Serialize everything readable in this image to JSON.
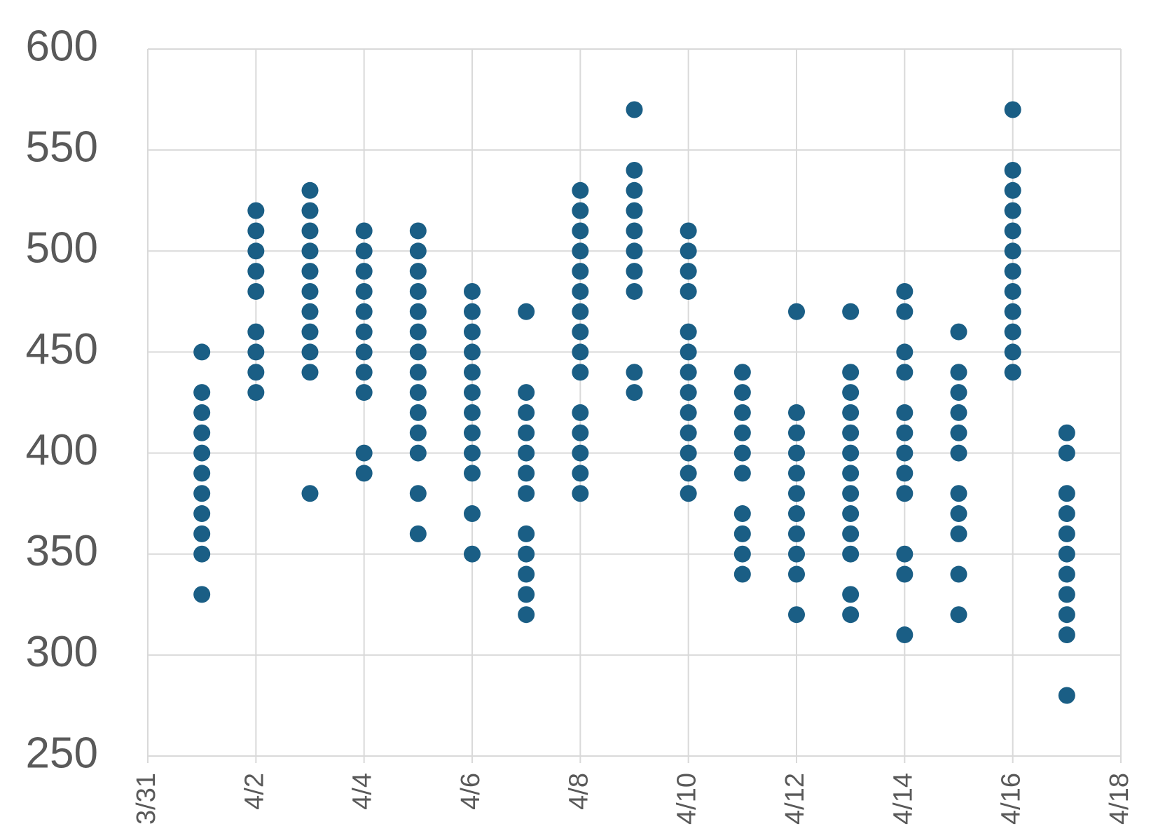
{
  "chart_data": {
    "type": "scatter",
    "series": [
      {
        "color": "#1a5e85",
        "x": [
          "4/1",
          "4/1",
          "4/1",
          "4/1",
          "4/1",
          "4/1",
          "4/1",
          "4/1",
          "4/1",
          "4/1",
          "4/1",
          "4/2",
          "4/2",
          "4/2",
          "4/2",
          "4/2",
          "4/2",
          "4/2",
          "4/2",
          "4/2",
          "4/3",
          "4/3",
          "4/3",
          "4/3",
          "4/3",
          "4/3",
          "4/3",
          "4/3",
          "4/3",
          "4/3",
          "4/3",
          "4/4",
          "4/4",
          "4/4",
          "4/4",
          "4/4",
          "4/4",
          "4/4",
          "4/4",
          "4/4",
          "4/4",
          "4/4",
          "4/5",
          "4/5",
          "4/5",
          "4/5",
          "4/5",
          "4/5",
          "4/5",
          "4/5",
          "4/5",
          "4/5",
          "4/5",
          "4/5",
          "4/5",
          "4/5",
          "4/6",
          "4/6",
          "4/6",
          "4/6",
          "4/6",
          "4/6",
          "4/6",
          "4/6",
          "4/6",
          "4/6",
          "4/6",
          "4/6",
          "4/7",
          "4/7",
          "4/7",
          "4/7",
          "4/7",
          "4/7",
          "4/7",
          "4/7",
          "4/7",
          "4/7",
          "4/7",
          "4/7",
          "4/8",
          "4/8",
          "4/8",
          "4/8",
          "4/8",
          "4/8",
          "4/8",
          "4/8",
          "4/8",
          "4/8",
          "4/8",
          "4/8",
          "4/8",
          "4/8",
          "4/8",
          "4/9",
          "4/9",
          "4/9",
          "4/9",
          "4/9",
          "4/9",
          "4/9",
          "4/9",
          "4/9",
          "4/9",
          "4/10",
          "4/10",
          "4/10",
          "4/10",
          "4/10",
          "4/10",
          "4/10",
          "4/10",
          "4/10",
          "4/10",
          "4/10",
          "4/10",
          "4/10",
          "4/11",
          "4/11",
          "4/11",
          "4/11",
          "4/11",
          "4/11",
          "4/11",
          "4/11",
          "4/11",
          "4/11",
          "4/12",
          "4/12",
          "4/12",
          "4/12",
          "4/12",
          "4/12",
          "4/12",
          "4/12",
          "4/12",
          "4/12",
          "4/12",
          "4/13",
          "4/13",
          "4/13",
          "4/13",
          "4/13",
          "4/13",
          "4/13",
          "4/13",
          "4/13",
          "4/13",
          "4/13",
          "4/13",
          "4/13",
          "4/14",
          "4/14",
          "4/14",
          "4/14",
          "4/14",
          "4/14",
          "4/14",
          "4/14",
          "4/14",
          "4/14",
          "4/14",
          "4/14",
          "4/15",
          "4/15",
          "4/15",
          "4/15",
          "4/15",
          "4/15",
          "4/15",
          "4/15",
          "4/15",
          "4/15",
          "4/15",
          "4/16",
          "4/16",
          "4/16",
          "4/16",
          "4/16",
          "4/16",
          "4/16",
          "4/16",
          "4/16",
          "4/16",
          "4/16",
          "4/16",
          "4/17",
          "4/17",
          "4/17",
          "4/17",
          "4/17",
          "4/17",
          "4/17",
          "4/17",
          "4/17",
          "4/17",
          "4/17"
        ],
        "values": [
          450,
          430,
          420,
          410,
          400,
          390,
          380,
          370,
          360,
          350,
          330,
          520,
          510,
          500,
          490,
          480,
          460,
          450,
          440,
          430,
          530,
          520,
          510,
          500,
          490,
          480,
          470,
          460,
          450,
          440,
          380,
          510,
          500,
          490,
          480,
          470,
          460,
          450,
          440,
          430,
          400,
          390,
          510,
          500,
          490,
          480,
          470,
          460,
          450,
          440,
          430,
          420,
          410,
          400,
          380,
          360,
          480,
          470,
          460,
          450,
          440,
          430,
          420,
          410,
          400,
          390,
          370,
          350,
          470,
          430,
          420,
          410,
          400,
          390,
          380,
          360,
          350,
          340,
          330,
          320,
          530,
          520,
          510,
          500,
          490,
          480,
          470,
          460,
          450,
          440,
          420,
          410,
          400,
          390,
          380,
          570,
          540,
          530,
          520,
          510,
          500,
          490,
          480,
          440,
          430,
          510,
          500,
          490,
          480,
          460,
          450,
          440,
          430,
          420,
          410,
          400,
          390,
          380,
          440,
          430,
          420,
          410,
          400,
          390,
          370,
          360,
          350,
          340,
          470,
          420,
          410,
          400,
          390,
          380,
          370,
          360,
          350,
          340,
          320,
          470,
          440,
          430,
          420,
          410,
          400,
          390,
          380,
          370,
          360,
          350,
          330,
          320,
          480,
          470,
          450,
          440,
          420,
          410,
          400,
          390,
          380,
          350,
          340,
          310,
          460,
          440,
          430,
          420,
          410,
          400,
          380,
          370,
          360,
          340,
          320,
          570,
          540,
          530,
          520,
          510,
          500,
          490,
          480,
          470,
          460,
          450,
          440,
          410,
          400,
          380,
          370,
          360,
          350,
          340,
          330,
          320,
          310,
          280
        ]
      }
    ],
    "xlim": [
      "3/31",
      "4/18"
    ],
    "xticks": [
      "3/31",
      "4/2",
      "4/4",
      "4/6",
      "4/8",
      "4/10",
      "4/12",
      "4/14",
      "4/16",
      "4/18"
    ],
    "ylim": [
      250,
      600
    ],
    "yticks": [
      250,
      300,
      350,
      400,
      450,
      500,
      550,
      600
    ],
    "grid": true
  }
}
